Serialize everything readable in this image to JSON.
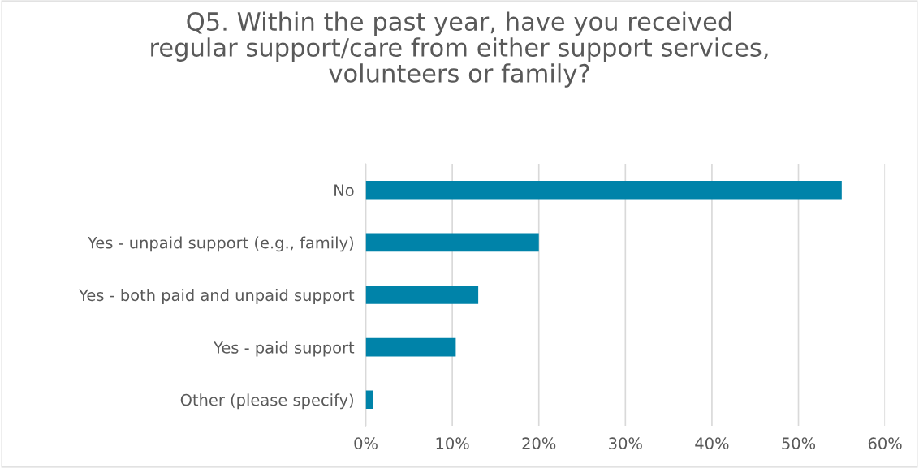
{
  "chart_data": {
    "type": "bar",
    "orientation": "horizontal",
    "title": "Q5. Within the past year, have you received\nregular support/care from either support services,\nvolunteers or family?",
    "categories": [
      "No",
      "Yes - unpaid support (e.g., family)",
      "Yes - both paid and unpaid support",
      "Yes - paid support",
      "Other (please specify)"
    ],
    "values": [
      55.0,
      20.0,
      13.0,
      10.4,
      0.8
    ],
    "color": "#0083a9",
    "xlim": [
      0,
      60
    ],
    "xticks": [
      {
        "value": 0,
        "label": "0%"
      },
      {
        "value": 10,
        "label": "10%"
      },
      {
        "value": 20,
        "label": "20%"
      },
      {
        "value": 30,
        "label": "30%"
      },
      {
        "value": 40,
        "label": "40%"
      },
      {
        "value": 50,
        "label": "50%"
      },
      {
        "value": 60,
        "label": "60%"
      }
    ],
    "grid": "x"
  }
}
